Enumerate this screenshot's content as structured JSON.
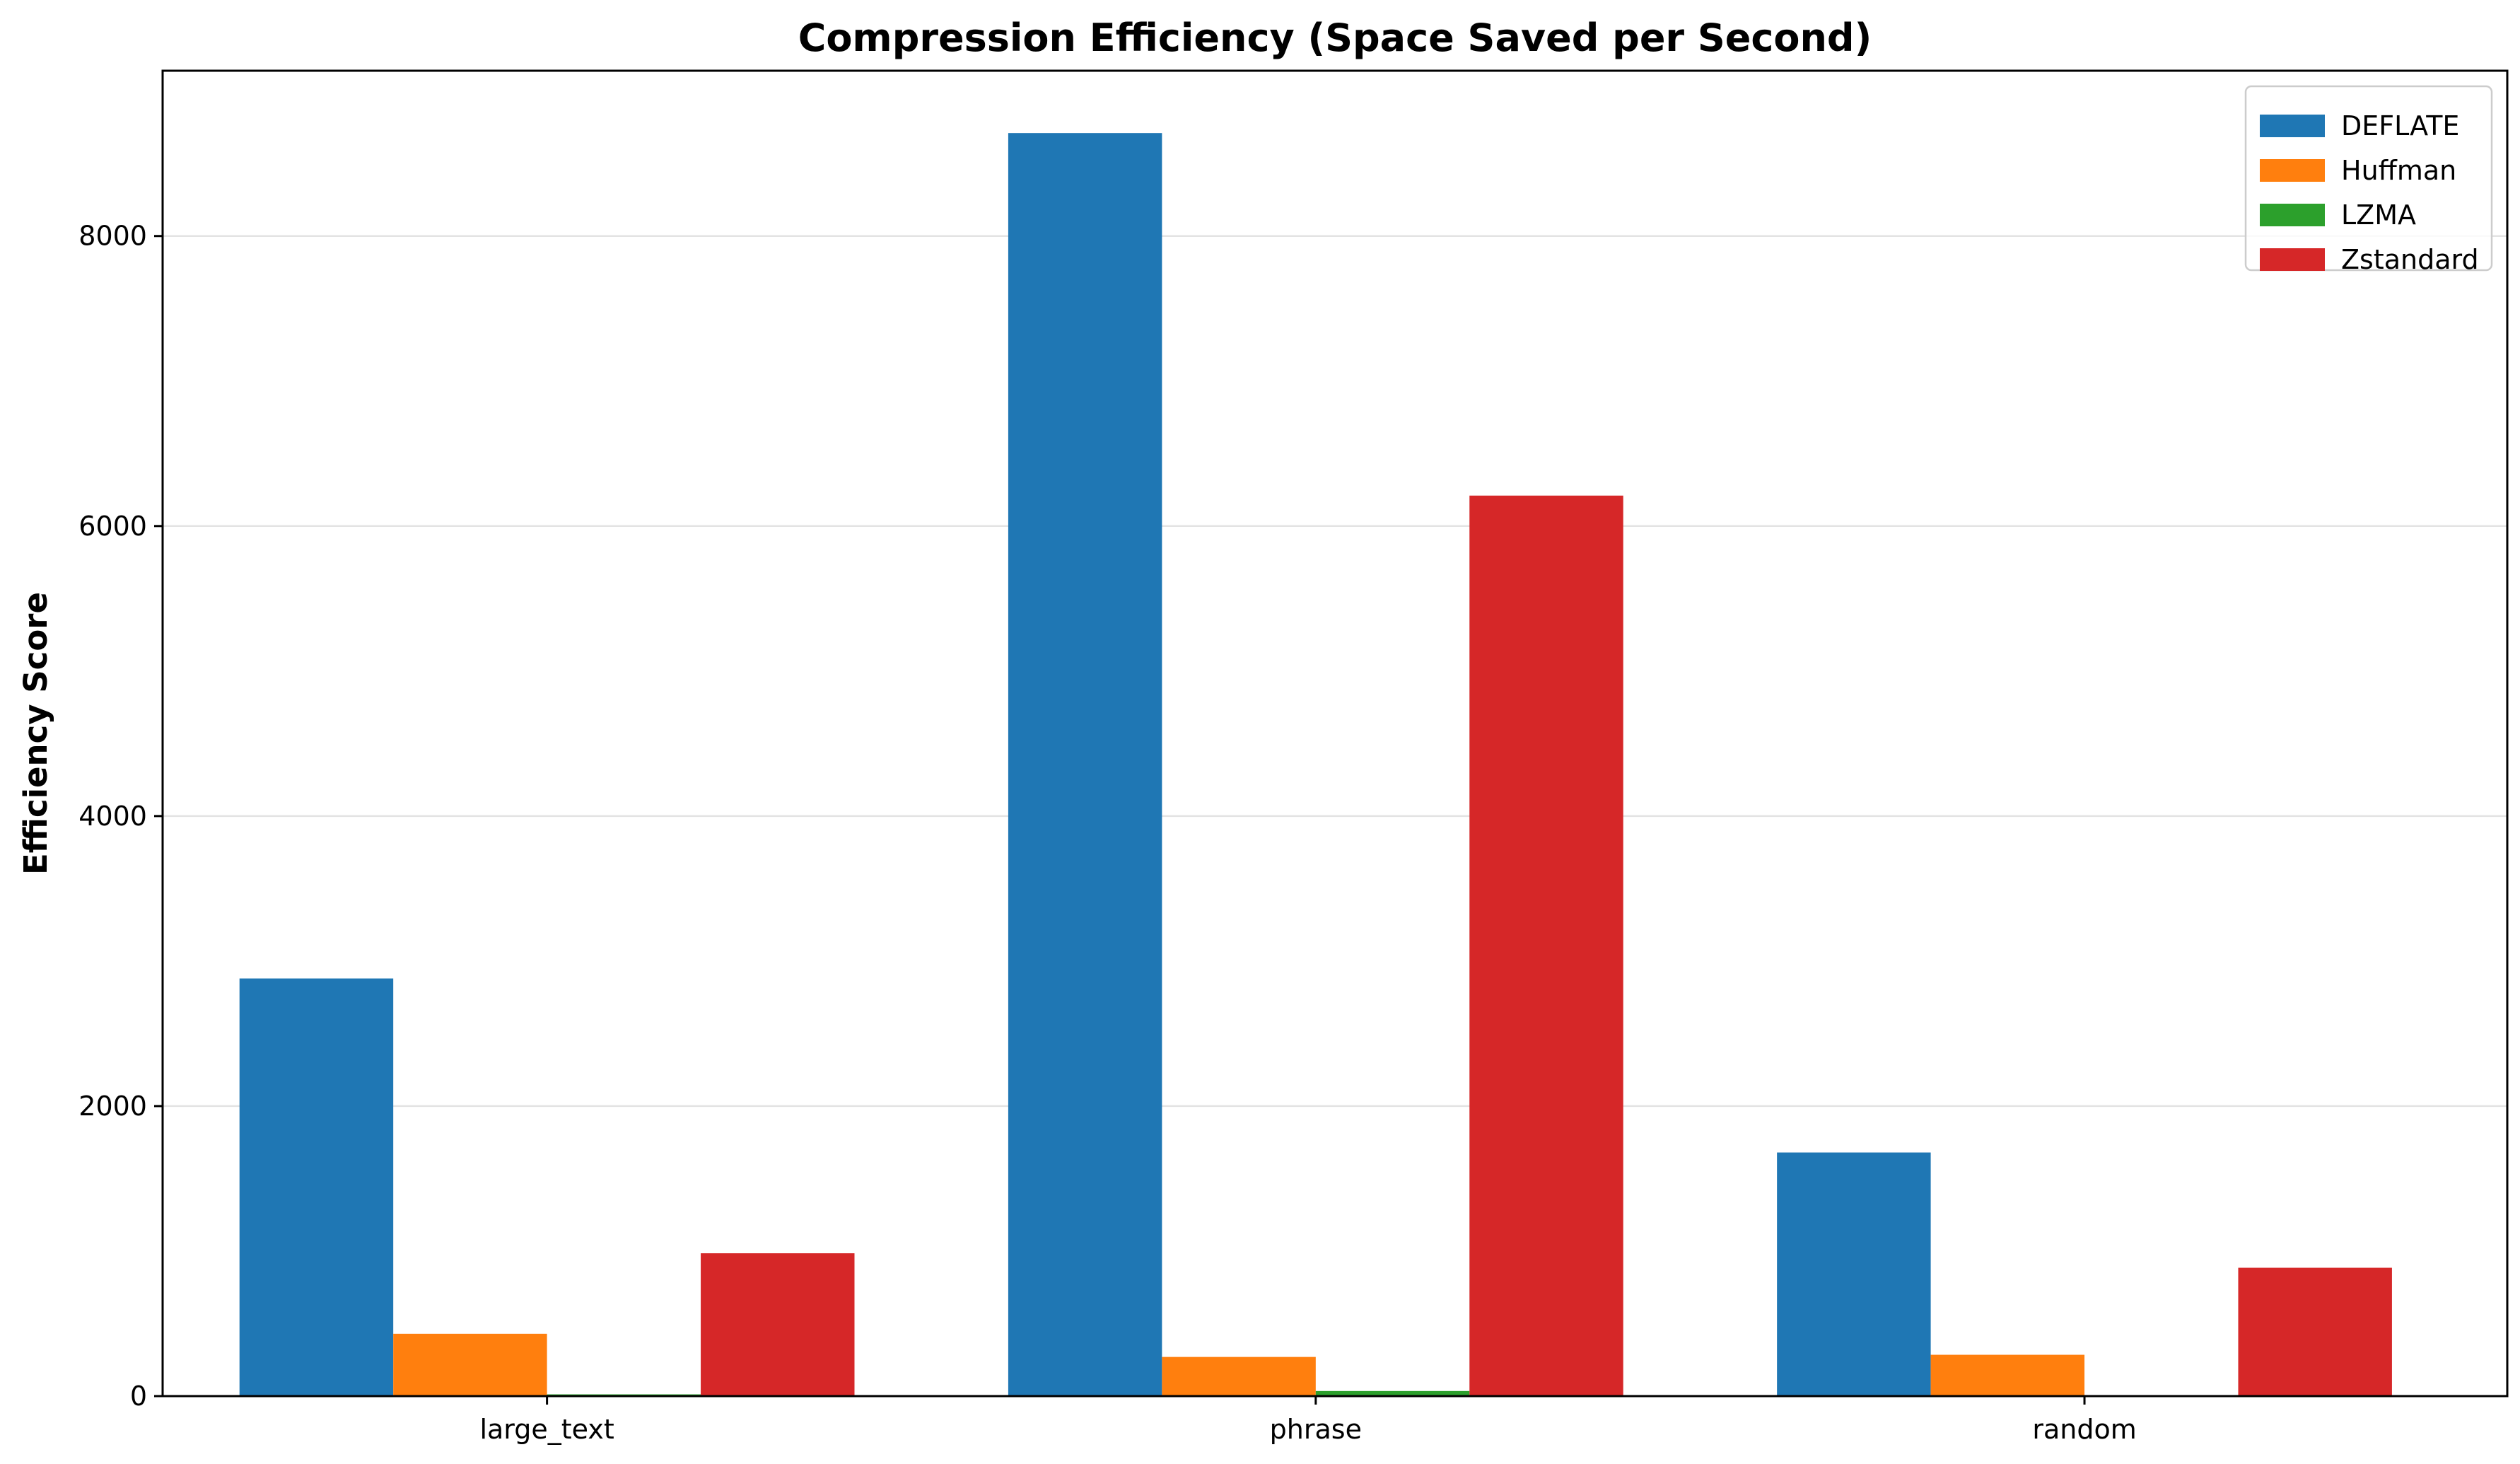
{
  "chart_data": {
    "type": "bar",
    "title": "Compression Efficiency (Space Saved per Second)",
    "xlabel": "",
    "ylabel": "Efficiency Score",
    "categories": [
      "large_text",
      "phrase",
      "random"
    ],
    "series": [
      {
        "name": "DEFLATE",
        "color": "#1f77b4",
        "values": [
          2880,
          8710,
          1680
        ]
      },
      {
        "name": "Huffman",
        "color": "#ff7f0e",
        "values": [
          430,
          270,
          285
        ]
      },
      {
        "name": "LZMA",
        "color": "#2ca02c",
        "values": [
          12,
          35,
          3
        ]
      },
      {
        "name": "Zstandard",
        "color": "#d62728",
        "values": [
          985,
          6210,
          885
        ]
      }
    ],
    "ylim": [
      0,
      9140
    ],
    "yticks": [
      0,
      2000,
      4000,
      6000,
      8000
    ],
    "grid": "y",
    "legend_position": "top-right"
  }
}
